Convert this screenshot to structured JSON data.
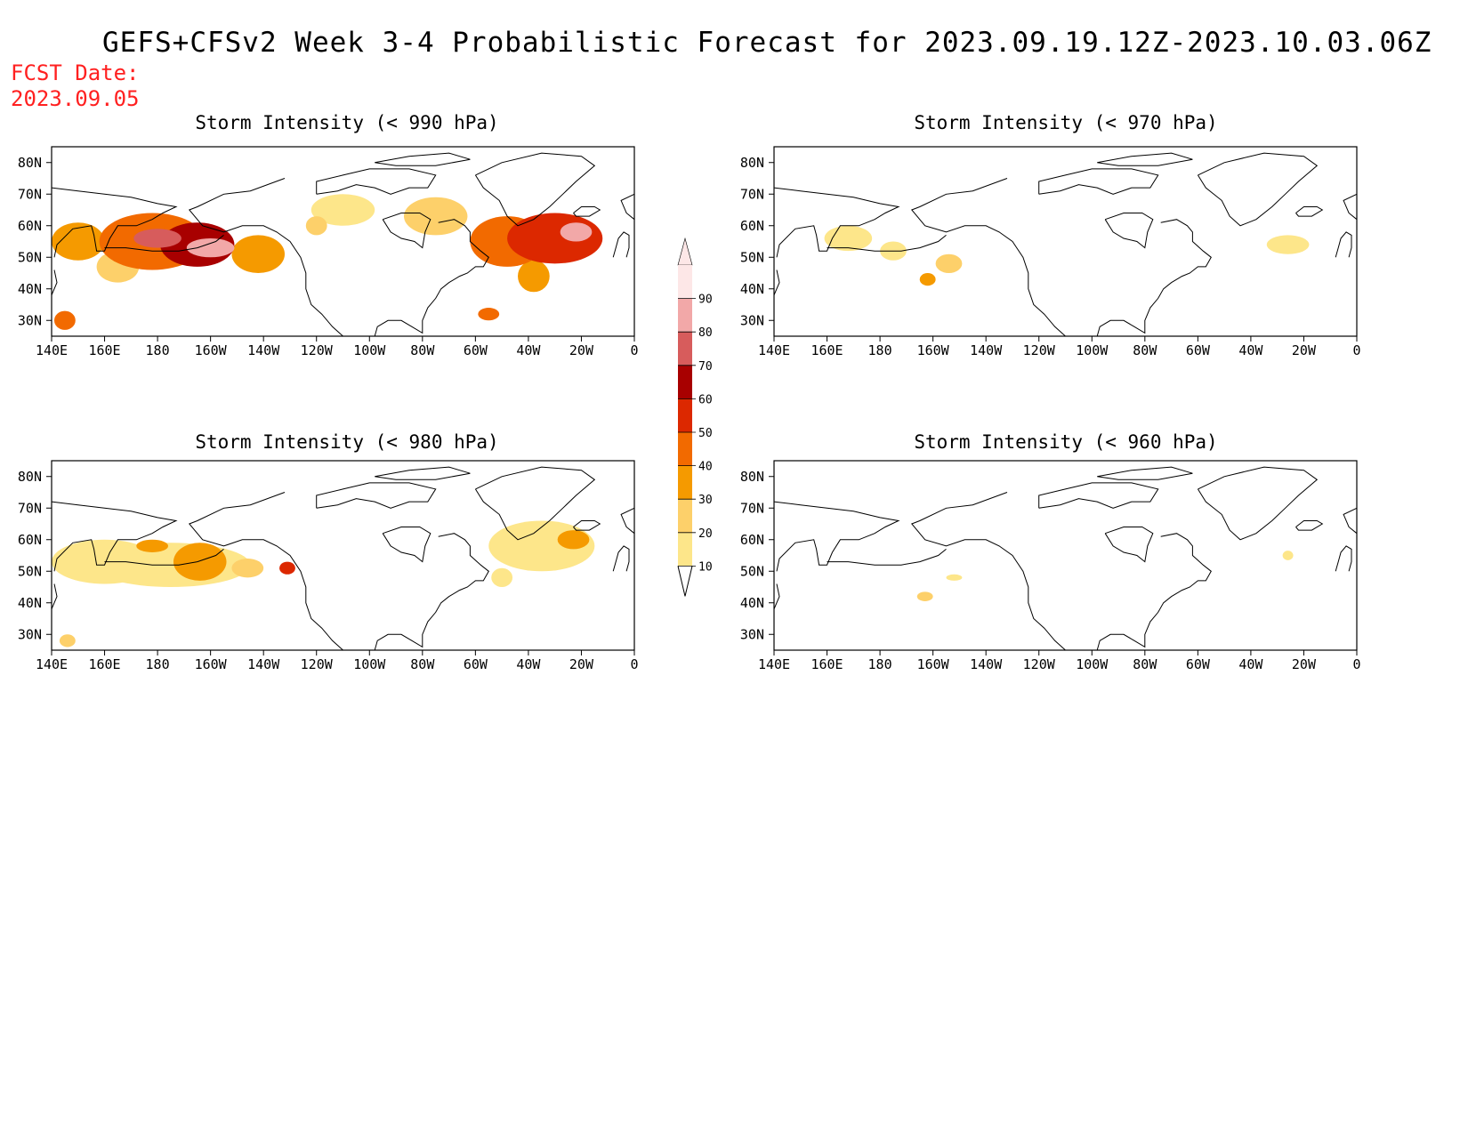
{
  "header": {
    "title": "GEFS+CFSv2 Week 3-4 Probabilistic Forecast for 2023.09.19.12Z-2023.10.03.06Z",
    "fcst_label": "FCST Date:",
    "fcst_date": "2023.09.05"
  },
  "colorbar": {
    "levels": [
      "10",
      "20",
      "30",
      "40",
      "50",
      "60",
      "70",
      "80",
      "90"
    ],
    "colors": [
      "#fffbd0",
      "#fde68a",
      "#fdd06a",
      "#f59a00",
      "#f26a00",
      "#dc2800",
      "#a80000",
      "#d75c5c",
      "#f2a8a8",
      "#fde7e7"
    ]
  },
  "axes": {
    "lon_labels": [
      "140E",
      "160E",
      "180",
      "160W",
      "140W",
      "120W",
      "100W",
      "80W",
      "60W",
      "40W",
      "20W",
      "0"
    ],
    "lat_labels": [
      "80N",
      "70N",
      "60N",
      "50N",
      "40N",
      "30N"
    ]
  },
  "panels": [
    {
      "id": "p990",
      "title": "Storm Intensity (< 990 hPa)",
      "blobs": [
        {
          "lon": 178,
          "lat": 55,
          "rx": 20,
          "ry": 9,
          "level": 4
        },
        {
          "lon": 195,
          "lat": 54,
          "rx": 14,
          "ry": 7,
          "level": 6
        },
        {
          "lon": 180,
          "lat": 56,
          "rx": 9,
          "ry": 3,
          "level": 7
        },
        {
          "lon": 200,
          "lat": 53,
          "rx": 9,
          "ry": 3,
          "level": 8
        },
        {
          "lon": 150,
          "lat": 55,
          "rx": 10,
          "ry": 6,
          "level": 3
        },
        {
          "lon": 165,
          "lat": 47,
          "rx": 8,
          "ry": 5,
          "level": 2
        },
        {
          "lon": 218,
          "lat": 51,
          "rx": 10,
          "ry": 6,
          "level": 3
        },
        {
          "lon": 145,
          "lat": 30,
          "rx": 4,
          "ry": 3,
          "level": 4
        },
        {
          "lon": 250,
          "lat": 65,
          "rx": 12,
          "ry": 5,
          "level": 1
        },
        {
          "lon": 240,
          "lat": 60,
          "rx": 4,
          "ry": 3,
          "level": 2
        },
        {
          "lon": 285,
          "lat": 63,
          "rx": 12,
          "ry": 6,
          "level": 2
        },
        {
          "lon": 312,
          "lat": 55,
          "rx": 14,
          "ry": 8,
          "level": 4
        },
        {
          "lon": 330,
          "lat": 56,
          "rx": 18,
          "ry": 8,
          "level": 5
        },
        {
          "lon": 338,
          "lat": 58,
          "rx": 6,
          "ry": 3,
          "level": 8
        },
        {
          "lon": 322,
          "lat": 44,
          "rx": 6,
          "ry": 5,
          "level": 3
        },
        {
          "lon": 305,
          "lat": 32,
          "rx": 4,
          "ry": 2,
          "level": 4
        }
      ]
    },
    {
      "id": "p970",
      "title": "Storm Intensity (< 970 hPa)",
      "blobs": [
        {
          "lon": 168,
          "lat": 56,
          "rx": 9,
          "ry": 4,
          "level": 1
        },
        {
          "lon": 185,
          "lat": 52,
          "rx": 5,
          "ry": 3,
          "level": 1
        },
        {
          "lon": 206,
          "lat": 48,
          "rx": 5,
          "ry": 3,
          "level": 2
        },
        {
          "lon": 198,
          "lat": 43,
          "rx": 3,
          "ry": 2,
          "level": 3
        },
        {
          "lon": 334,
          "lat": 54,
          "rx": 8,
          "ry": 3,
          "level": 1
        }
      ]
    },
    {
      "id": "p980",
      "title": "Storm Intensity (< 980 hPa)",
      "blobs": [
        {
          "lon": 160,
          "lat": 53,
          "rx": 20,
          "ry": 7,
          "level": 1
        },
        {
          "lon": 185,
          "lat": 52,
          "rx": 30,
          "ry": 7,
          "level": 1
        },
        {
          "lon": 178,
          "lat": 58,
          "rx": 6,
          "ry": 2,
          "level": 3
        },
        {
          "lon": 196,
          "lat": 53,
          "rx": 10,
          "ry": 6,
          "level": 3
        },
        {
          "lon": 214,
          "lat": 51,
          "rx": 6,
          "ry": 3,
          "level": 2
        },
        {
          "lon": 229,
          "lat": 51,
          "rx": 3,
          "ry": 2,
          "level": 5
        },
        {
          "lon": 325,
          "lat": 58,
          "rx": 20,
          "ry": 8,
          "level": 1
        },
        {
          "lon": 337,
          "lat": 60,
          "rx": 6,
          "ry": 3,
          "level": 3
        },
        {
          "lon": 310,
          "lat": 48,
          "rx": 4,
          "ry": 3,
          "level": 1
        },
        {
          "lon": 146,
          "lat": 28,
          "rx": 3,
          "ry": 2,
          "level": 2
        }
      ]
    },
    {
      "id": "p960",
      "title": "Storm Intensity (< 960 hPa)",
      "blobs": [
        {
          "lon": 197,
          "lat": 42,
          "rx": 3,
          "ry": 1.5,
          "level": 2
        },
        {
          "lon": 208,
          "lat": 48,
          "rx": 3,
          "ry": 1,
          "level": 1
        },
        {
          "lon": 334,
          "lat": 55,
          "rx": 2,
          "ry": 1.5,
          "level": 1
        }
      ]
    }
  ]
}
